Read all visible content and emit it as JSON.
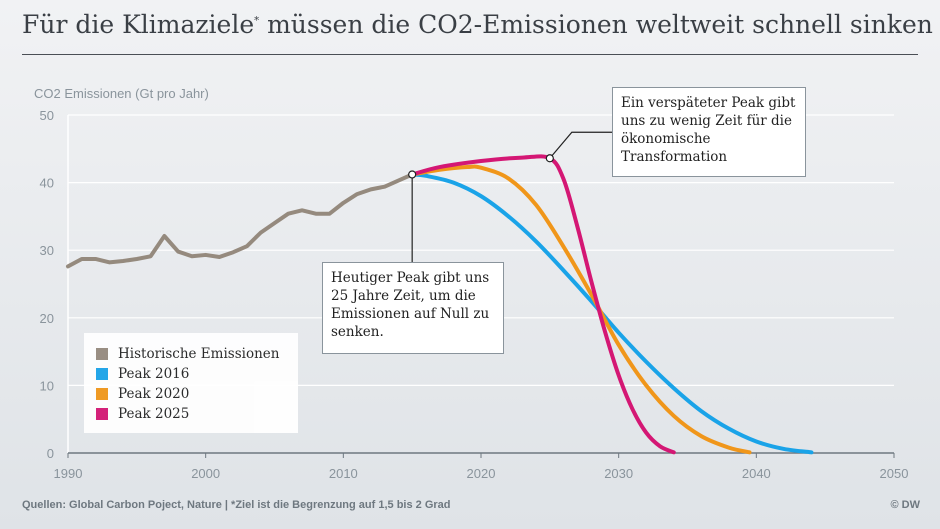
{
  "title": {
    "main_a": "Für die Klimaziele",
    "star": "*",
    "main_b": " müssen die CO2-Emissionen weltweit schnell sinken"
  },
  "footer": {
    "source": "Quellen:  Global Carbon Poject, Nature | *Ziel ist die Begrenzung auf 1,5 bis 2 Grad",
    "copyright": "© DW"
  },
  "callouts": {
    "today_peak": "Heutiger Peak gibt uns 25 Jahre Zeit, um die Emissionen auf Null zu senken.",
    "late_peak": "Ein verspäteter Peak gibt uns zu wenig Zeit für die ökonomische Transformation"
  },
  "chart_data": {
    "type": "line",
    "ylabel": "CO2 Emissionen (Gt pro Jahr)",
    "xlabel": "",
    "xlim": [
      1990,
      2050
    ],
    "ylim": [
      0,
      50
    ],
    "x_ticks": [
      1990,
      2000,
      2010,
      2020,
      2030,
      2040,
      2050
    ],
    "y_ticks": [
      0,
      10,
      20,
      30,
      40,
      50
    ],
    "grid": "horizontal",
    "legend_position": "bottom-left",
    "series": [
      {
        "name": "Historische Emissionen",
        "color": "#958a7e",
        "points": [
          [
            1990,
            27.6
          ],
          [
            1991,
            28.7
          ],
          [
            1992,
            28.7
          ],
          [
            1993,
            28.2
          ],
          [
            1994,
            28.4
          ],
          [
            1995,
            28.7
          ],
          [
            1996,
            29.1
          ],
          [
            1997,
            32.1
          ],
          [
            1998,
            29.8
          ],
          [
            1999,
            29.1
          ],
          [
            2000,
            29.3
          ],
          [
            2001,
            29.0
          ],
          [
            2002,
            29.7
          ],
          [
            2003,
            30.6
          ],
          [
            2004,
            32.6
          ],
          [
            2005,
            34.0
          ],
          [
            2006,
            35.4
          ],
          [
            2007,
            35.9
          ],
          [
            2008,
            35.4
          ],
          [
            2009,
            35.4
          ],
          [
            2010,
            37.0
          ],
          [
            2011,
            38.3
          ],
          [
            2012,
            39.0
          ],
          [
            2013,
            39.4
          ],
          [
            2014,
            40.3
          ],
          [
            2015,
            41.2
          ]
        ]
      },
      {
        "name": "Peak 2016",
        "color": "#1aa3e8",
        "points": [
          [
            2015,
            41.2
          ],
          [
            2016,
            41.0
          ],
          [
            2018,
            40.0
          ],
          [
            2020,
            38.0
          ],
          [
            2022,
            35.0
          ],
          [
            2024,
            31.3
          ],
          [
            2026,
            27.0
          ],
          [
            2028,
            22.5
          ],
          [
            2030,
            17.8
          ],
          [
            2032,
            13.5
          ],
          [
            2034,
            9.6
          ],
          [
            2036,
            6.2
          ],
          [
            2038,
            3.6
          ],
          [
            2040,
            1.7
          ],
          [
            2042,
            0.6
          ],
          [
            2044,
            0.1
          ]
        ]
      },
      {
        "name": "Peak 2020",
        "color": "#f0961a",
        "points": [
          [
            2015,
            41.2
          ],
          [
            2017,
            41.9
          ],
          [
            2019,
            42.3
          ],
          [
            2020,
            42.2
          ],
          [
            2022,
            40.6
          ],
          [
            2024,
            36.7
          ],
          [
            2026,
            30.5
          ],
          [
            2028,
            23.5
          ],
          [
            2030,
            16.0
          ],
          [
            2032,
            10.0
          ],
          [
            2034,
            5.5
          ],
          [
            2036,
            2.5
          ],
          [
            2038,
            0.8
          ],
          [
            2039.5,
            0.1
          ]
        ]
      },
      {
        "name": "Peak 2025",
        "color": "#d41774",
        "points": [
          [
            2015,
            41.2
          ],
          [
            2017,
            42.3
          ],
          [
            2020,
            43.2
          ],
          [
            2023,
            43.7
          ],
          [
            2025,
            43.6
          ],
          [
            2026,
            40.5
          ],
          [
            2027,
            33.5
          ],
          [
            2028,
            25.5
          ],
          [
            2029,
            18.0
          ],
          [
            2030,
            11.5
          ],
          [
            2031,
            6.5
          ],
          [
            2032,
            3.0
          ],
          [
            2033,
            1.0
          ],
          [
            2034,
            0.1
          ]
        ]
      }
    ],
    "markers": [
      {
        "x": 2015,
        "y": 41.2,
        "label_ref": "today_peak"
      },
      {
        "x": 2025,
        "y": 43.6,
        "label_ref": "late_peak"
      }
    ]
  }
}
